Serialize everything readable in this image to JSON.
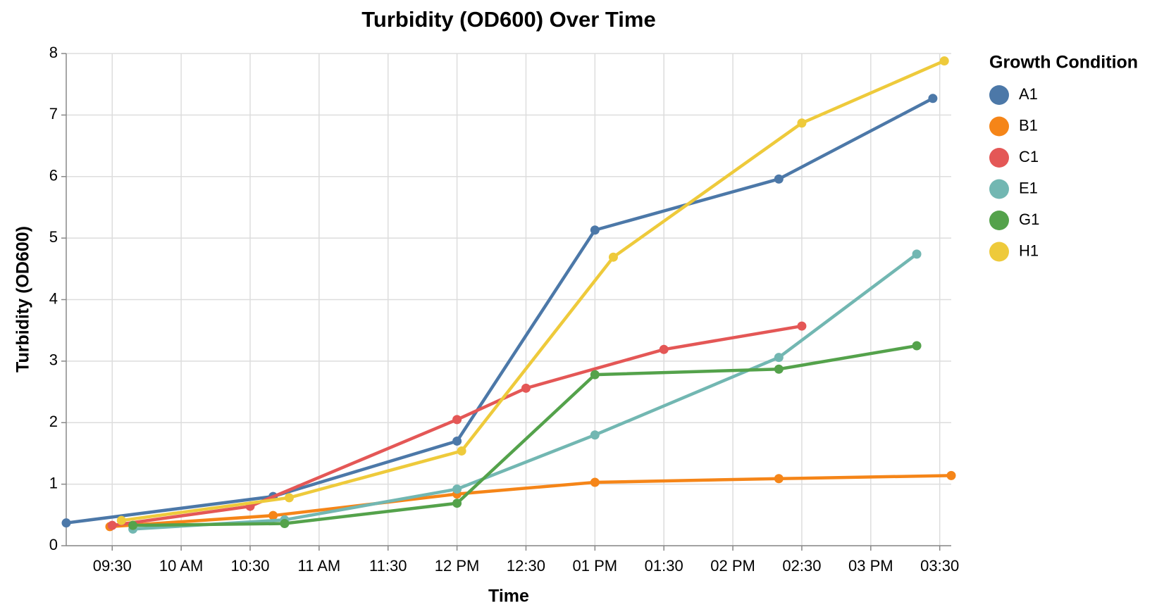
{
  "chart_data": {
    "type": "line",
    "title": "Turbidity (OD600) Over Time",
    "x_label": "Time",
    "y_label": "Turbidity (OD600)",
    "legend_title": "Growth Condition",
    "legend_position": "right",
    "grid": true,
    "xlim": [
      "09:10",
      "15:35"
    ],
    "xticks": [
      {
        "value": "09:30",
        "label": "09:30"
      },
      {
        "value": "10:00",
        "label": "10 AM"
      },
      {
        "value": "10:30",
        "label": "10:30"
      },
      {
        "value": "11:00",
        "label": "11 AM"
      },
      {
        "value": "11:30",
        "label": "11:30"
      },
      {
        "value": "12:00",
        "label": "12 PM"
      },
      {
        "value": "12:30",
        "label": "12:30"
      },
      {
        "value": "13:00",
        "label": "01 PM"
      },
      {
        "value": "13:30",
        "label": "01:30"
      },
      {
        "value": "14:00",
        "label": "02 PM"
      },
      {
        "value": "14:30",
        "label": "02:30"
      },
      {
        "value": "15:00",
        "label": "03 PM"
      },
      {
        "value": "15:30",
        "label": "03:30"
      }
    ],
    "ylim": [
      0,
      8
    ],
    "yticks": [
      0,
      1,
      2,
      3,
      4,
      5,
      6,
      7,
      8
    ],
    "series": [
      {
        "name": "A1",
        "color": "#4c78a8",
        "x": [
          "09:10",
          "10:40",
          "12:00",
          "13:00",
          "14:20",
          "15:27"
        ],
        "values": [
          0.37,
          0.8,
          1.7,
          5.13,
          5.96,
          7.27
        ]
      },
      {
        "name": "B1",
        "color": "#f58518",
        "x": [
          "09:29",
          "10:40",
          "12:00",
          "13:00",
          "14:20",
          "15:35"
        ],
        "values": [
          0.31,
          0.49,
          0.84,
          1.03,
          1.09,
          1.14
        ]
      },
      {
        "name": "C1",
        "color": "#e45756",
        "x": [
          "09:30",
          "10:30",
          "12:00",
          "12:30",
          "13:30",
          "14:30"
        ],
        "values": [
          0.33,
          0.64,
          2.05,
          2.56,
          3.19,
          3.57
        ]
      },
      {
        "name": "E1",
        "color": "#72b7b2",
        "x": [
          "09:39",
          "10:45",
          "12:00",
          "13:00",
          "14:20",
          "15:20"
        ],
        "values": [
          0.27,
          0.42,
          0.92,
          1.8,
          3.06,
          4.74
        ]
      },
      {
        "name": "G1",
        "color": "#54a24b",
        "x": [
          "09:39",
          "10:45",
          "12:00",
          "13:00",
          "14:20",
          "15:20"
        ],
        "values": [
          0.33,
          0.36,
          0.69,
          2.78,
          2.87,
          3.25
        ]
      },
      {
        "name": "H1",
        "color": "#eeca3b",
        "x": [
          "09:34",
          "10:47",
          "12:02",
          "13:08",
          "14:30",
          "15:32"
        ],
        "values": [
          0.41,
          0.78,
          1.54,
          4.69,
          6.87,
          7.88
        ]
      }
    ]
  }
}
